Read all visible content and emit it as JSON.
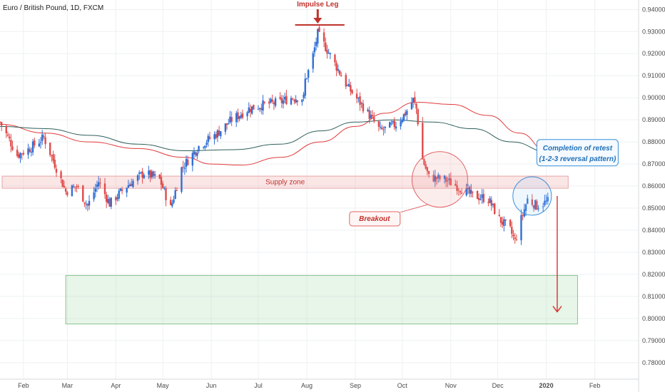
{
  "header": {
    "title": "Euro / British Pound, 1D, FXCM"
  },
  "chart_data": {
    "type": "candlestick",
    "symbol_title": "Euro / British Pound, 1D, FXCM",
    "x_axis": {
      "ticks": [
        "Feb",
        "Mar",
        "Apr",
        "May",
        "Jun",
        "Jul",
        "Aug",
        "Sep",
        "Oct",
        "Nov",
        "Dec",
        "2020",
        "Feb"
      ],
      "range": [
        "2019-01-17",
        "2020-02-29"
      ]
    },
    "y_axis": {
      "ticks": [
        "0.94000",
        "0.93000",
        "0.92000",
        "0.91000",
        "0.90000",
        "0.89000",
        "0.88000",
        "0.87000",
        "0.86000",
        "0.85000",
        "0.84000",
        "0.83000",
        "0.82000",
        "0.81000",
        "0.80000",
        "0.79000",
        "0.78000"
      ],
      "ylim": [
        0.7725,
        0.9443
      ],
      "position": "right"
    },
    "price_path": [
      [
        "2019-01-17",
        0.889
      ],
      [
        "2019-01-28",
        0.874
      ],
      [
        "2019-02-05",
        0.877
      ],
      [
        "2019-02-14",
        0.882
      ],
      [
        "2019-02-21",
        0.87
      ],
      [
        "2019-02-28",
        0.8575
      ],
      [
        "2019-03-07",
        0.86
      ],
      [
        "2019-03-14",
        0.851
      ],
      [
        "2019-03-21",
        0.862
      ],
      [
        "2019-03-28",
        0.852
      ],
      [
        "2019-04-08",
        0.86
      ],
      [
        "2019-04-19",
        0.866
      ],
      [
        "2019-04-29",
        0.863
      ],
      [
        "2019-05-06",
        0.85
      ],
      [
        "2019-05-13",
        0.868
      ],
      [
        "2019-05-24",
        0.878
      ],
      [
        "2019-06-05",
        0.884
      ],
      [
        "2019-06-14",
        0.89
      ],
      [
        "2019-06-25",
        0.895
      ],
      [
        "2019-07-05",
        0.897
      ],
      [
        "2019-07-15",
        0.898
      ],
      [
        "2019-07-22",
        0.9
      ],
      [
        "2019-07-30",
        0.9
      ],
      [
        "2019-07-31",
        0.908
      ],
      [
        "2019-08-04",
        0.916
      ],
      [
        "2019-08-08",
        0.929
      ],
      [
        "2019-08-13",
        0.923
      ],
      [
        "2019-08-20",
        0.914
      ],
      [
        "2019-08-27",
        0.905
      ],
      [
        "2019-09-06",
        0.896
      ],
      [
        "2019-09-17",
        0.885
      ],
      [
        "2019-09-27",
        0.888
      ],
      [
        "2019-10-03",
        0.893
      ],
      [
        "2019-10-08",
        0.899
      ],
      [
        "2019-10-10",
        0.895
      ],
      [
        "2019-10-14",
        0.872
      ],
      [
        "2019-10-18",
        0.864
      ],
      [
        "2019-10-28",
        0.863
      ],
      [
        "2019-11-05",
        0.86
      ],
      [
        "2019-11-14",
        0.856
      ],
      [
        "2019-11-25",
        0.854
      ],
      [
        "2019-12-02",
        0.845
      ],
      [
        "2019-12-09",
        0.84
      ],
      [
        "2019-12-12",
        0.835
      ],
      [
        "2019-12-16",
        0.845
      ],
      [
        "2019-12-20",
        0.854
      ],
      [
        "2019-12-26",
        0.851
      ],
      [
        "2020-01-02",
        0.853
      ]
    ],
    "moving_averages": [
      {
        "color": "#e03b3b",
        "points": [
          [
            "2019-01-17",
            0.888
          ],
          [
            "2019-02-15",
            0.884
          ],
          [
            "2019-03-15",
            0.88
          ],
          [
            "2019-04-15",
            0.877
          ],
          [
            "2019-05-15",
            0.873
          ],
          [
            "2019-06-01",
            0.87
          ],
          [
            "2019-06-20",
            0.8695
          ],
          [
            "2019-07-15",
            0.873
          ],
          [
            "2019-08-10",
            0.88
          ],
          [
            "2019-09-01",
            0.887
          ],
          [
            "2019-09-20",
            0.893
          ],
          [
            "2019-10-10",
            0.898
          ],
          [
            "2019-11-01",
            0.897
          ],
          [
            "2019-11-25",
            0.892
          ],
          [
            "2019-12-15",
            0.884
          ],
          [
            "2020-01-02",
            0.8755
          ]
        ]
      },
      {
        "color": "#2f5f5a",
        "points": [
          [
            "2019-01-17",
            0.887
          ],
          [
            "2019-02-15",
            0.886
          ],
          [
            "2019-03-15",
            0.883
          ],
          [
            "2019-04-15",
            0.879
          ],
          [
            "2019-05-15",
            0.876
          ],
          [
            "2019-06-15",
            0.8765
          ],
          [
            "2019-07-15",
            0.879
          ],
          [
            "2019-08-10",
            0.885
          ],
          [
            "2019-09-01",
            0.889
          ],
          [
            "2019-09-25",
            0.89
          ],
          [
            "2019-10-20",
            0.889
          ],
          [
            "2019-11-15",
            0.886
          ],
          [
            "2019-12-10",
            0.88
          ],
          [
            "2020-01-02",
            0.8755
          ]
        ]
      }
    ],
    "colors": {
      "up": "#2f6fd6",
      "down": "#e04a4a",
      "grid": "#eef0f3",
      "axis_text": "#4a4a4a"
    },
    "annotations": {
      "impulse_leg": {
        "label": "Impulse Leg",
        "x_range": [
          "2019-07-30",
          "2019-08-26"
        ],
        "level": 0.933,
        "color": "#c0322c"
      },
      "supply_zone": {
        "label": "Supply zone",
        "x_range": [
          "2019-01-17",
          "2020-01-15"
        ],
        "y_range": [
          0.859,
          0.8645
        ],
        "color": "#c0322c"
      },
      "target_zone": {
        "x_range": [
          "2019-02-28",
          "2020-01-21"
        ],
        "y_range": [
          0.7975,
          0.8195
        ]
      },
      "breakout": {
        "label": "Breakout",
        "circle_center": [
          "2019-10-25",
          0.863
        ],
        "callout_anchor": [
          "2019-09-21",
          0.8455
        ]
      },
      "retest": {
        "title": "Completion of retest",
        "subtitle": "(1-2-3 reversal pattern)",
        "circle_center": [
          "2019-12-23",
          0.8555
        ],
        "callout_anchor": [
          "2019-12-26",
          0.873
        ]
      },
      "target_arrow": {
        "date": "2020-01-08",
        "from": 0.8555,
        "to": 0.803
      }
    }
  }
}
